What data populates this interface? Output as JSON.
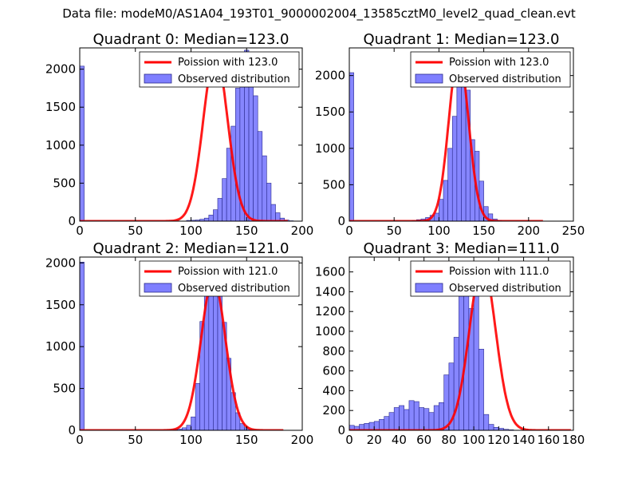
{
  "figure_title": "Data file: modeM0/AS1A04_193T01_9000002004_13585cztM0_level2_quad_clean.evt",
  "colors": {
    "bar_fill": "#7f7fff",
    "bar_edge": "#2a2a8c",
    "fit_line": "#ff0000",
    "axis": "#000000"
  },
  "chart_data": [
    {
      "type": "bar",
      "title": "Quadrant 0: Median=123.0",
      "xlim": [
        0,
        200
      ],
      "ylim": [
        0,
        2280
      ],
      "xticks": [
        0,
        50,
        100,
        150,
        200
      ],
      "yticks": [
        0,
        500,
        1000,
        1500,
        2000
      ],
      "legend": {
        "position": "top-right",
        "line_label": "Poission with 123.0",
        "bar_label": "Observed distribution"
      },
      "bins": {
        "start": 0,
        "width": 4,
        "counts": [
          2040,
          0,
          0,
          0,
          0,
          0,
          0,
          0,
          0,
          0,
          0,
          0,
          0,
          0,
          0,
          0,
          0,
          0,
          0,
          0,
          0,
          0,
          0,
          0,
          10,
          12,
          15,
          25,
          40,
          80,
          150,
          300,
          560,
          960,
          1250,
          1750,
          2170,
          2250,
          2050,
          1650,
          1180,
          860,
          500,
          220,
          110,
          40,
          15,
          5,
          2,
          1
        ]
      },
      "fit": {
        "peak": 2190,
        "center": 122,
        "sigma": 11,
        "x_range": [
          0,
          187
        ]
      }
    },
    {
      "type": "bar",
      "title": "Quadrant 1: Median=123.0",
      "xlim": [
        0,
        250
      ],
      "ylim": [
        0,
        2380
      ],
      "xticks": [
        0,
        50,
        100,
        150,
        200,
        250
      ],
      "yticks": [
        0,
        500,
        1000,
        1500,
        2000
      ],
      "legend": {
        "position": "top-right",
        "line_label": "Poission with 123.0",
        "bar_label": "Observed distribution"
      },
      "bins": {
        "start": 0,
        "width": 5,
        "counts": [
          2040,
          0,
          0,
          0,
          0,
          0,
          0,
          0,
          0,
          0,
          0,
          0,
          0,
          0,
          10,
          20,
          30,
          50,
          80,
          110,
          300,
          560,
          1000,
          1440,
          2200,
          2260,
          1800,
          1120,
          960,
          550,
          200,
          100,
          30,
          10,
          0,
          0,
          0,
          0,
          0,
          0,
          0,
          0,
          0,
          0,
          0,
          0,
          0,
          0,
          0,
          0
        ]
      },
      "fit": {
        "peak": 2290,
        "center": 122,
        "sigma": 11,
        "x_range": [
          0,
          216
        ]
      }
    },
    {
      "type": "bar",
      "title": "Quadrant 2: Median=121.0",
      "xlim": [
        0,
        200
      ],
      "ylim": [
        0,
        2070
      ],
      "xticks": [
        0,
        50,
        100,
        150,
        200
      ],
      "yticks": [
        0,
        500,
        1000,
        1500,
        2000
      ],
      "legend": {
        "position": "top-right",
        "line_label": "Poission with 121.0",
        "bar_label": "Observed distribution"
      },
      "bins": {
        "start": 0,
        "width": 4,
        "counts": [
          2010,
          0,
          0,
          0,
          0,
          0,
          0,
          0,
          0,
          0,
          0,
          0,
          0,
          0,
          0,
          0,
          0,
          0,
          0,
          0,
          0,
          10,
          15,
          30,
          60,
          160,
          560,
          1300,
          1650,
          1800,
          1900,
          1750,
          1290,
          860,
          450,
          210,
          80,
          30,
          5,
          0,
          0,
          0,
          0,
          0,
          0,
          0,
          0,
          0,
          0,
          0
        ]
      },
      "fit": {
        "peak": 1800,
        "center": 120,
        "sigma": 11,
        "x_range": [
          0,
          183
        ]
      }
    },
    {
      "type": "bar",
      "title": "Quadrant 3: Median=111.0",
      "xlim": [
        0,
        180
      ],
      "ylim": [
        0,
        1750
      ],
      "xticks": [
        0,
        20,
        40,
        60,
        80,
        100,
        120,
        140,
        160,
        180
      ],
      "yticks": [
        0,
        200,
        400,
        600,
        800,
        1000,
        1200,
        1400,
        1600
      ],
      "legend": {
        "position": "top-right",
        "line_label": "Poission with 111.0",
        "bar_label": "Observed distribution"
      },
      "bins": {
        "start": 0,
        "width": 4,
        "counts": [
          50,
          40,
          60,
          70,
          80,
          90,
          110,
          140,
          180,
          230,
          250,
          210,
          300,
          290,
          230,
          220,
          180,
          250,
          280,
          560,
          680,
          940,
          1700,
          1520,
          1230,
          1560,
          820,
          160,
          60,
          30,
          20,
          10,
          5,
          0,
          0,
          0,
          0,
          0,
          0,
          0,
          0,
          0,
          0,
          0,
          0
        ]
      },
      "fit": {
        "peak": 1680,
        "center": 107,
        "sigma": 10.5,
        "x_range": [
          0,
          178
        ]
      }
    }
  ]
}
